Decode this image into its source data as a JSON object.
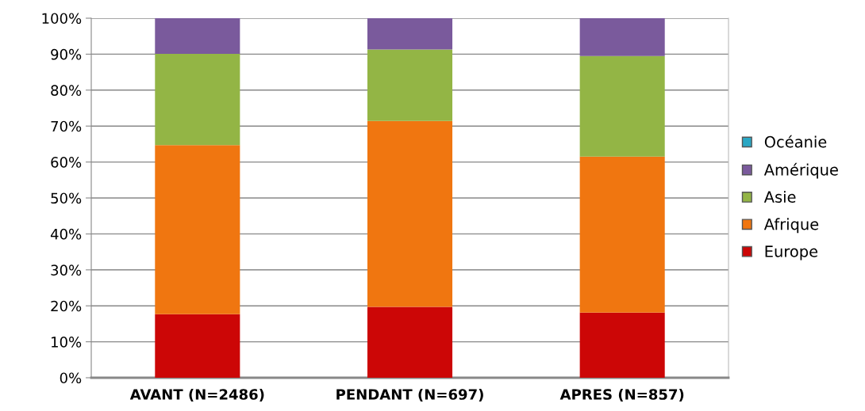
{
  "chart_data": {
    "type": "bar",
    "stacked": true,
    "categories": [
      "AVANT (N=2486)",
      "PENDANT (N=697)",
      "APRES (N=857)"
    ],
    "series": [
      {
        "name": "Europe",
        "color": "#cc0606",
        "values": [
          17.7,
          19.7,
          18.1
        ]
      },
      {
        "name": "Afrique",
        "color": "#f07610",
        "values": [
          47.0,
          51.7,
          43.4
        ]
      },
      {
        "name": "Asie",
        "color": "#93b545",
        "values": [
          25.4,
          19.9,
          28.0
        ]
      },
      {
        "name": "Amérique",
        "color": "#7a5a9c",
        "values": [
          9.9,
          8.7,
          10.5
        ]
      },
      {
        "name": "Océanie",
        "color": "#2aa7c4",
        "values": [
          0,
          0,
          0
        ]
      }
    ],
    "ylim": [
      0,
      100
    ],
    "yticks": [
      {
        "value": 0,
        "label": "0%"
      },
      {
        "value": 10,
        "label": "10%"
      },
      {
        "value": 20,
        "label": "20%"
      },
      {
        "value": 30,
        "label": "30%"
      },
      {
        "value": 40,
        "label": "40%"
      },
      {
        "value": 50,
        "label": "50%"
      },
      {
        "value": 60,
        "label": "60%"
      },
      {
        "value": 70,
        "label": "70%"
      },
      {
        "value": 80,
        "label": "80%"
      },
      {
        "value": 90,
        "label": "90%"
      },
      {
        "value": 100,
        "label": "100%"
      }
    ],
    "grid": "y",
    "legend": "right"
  }
}
